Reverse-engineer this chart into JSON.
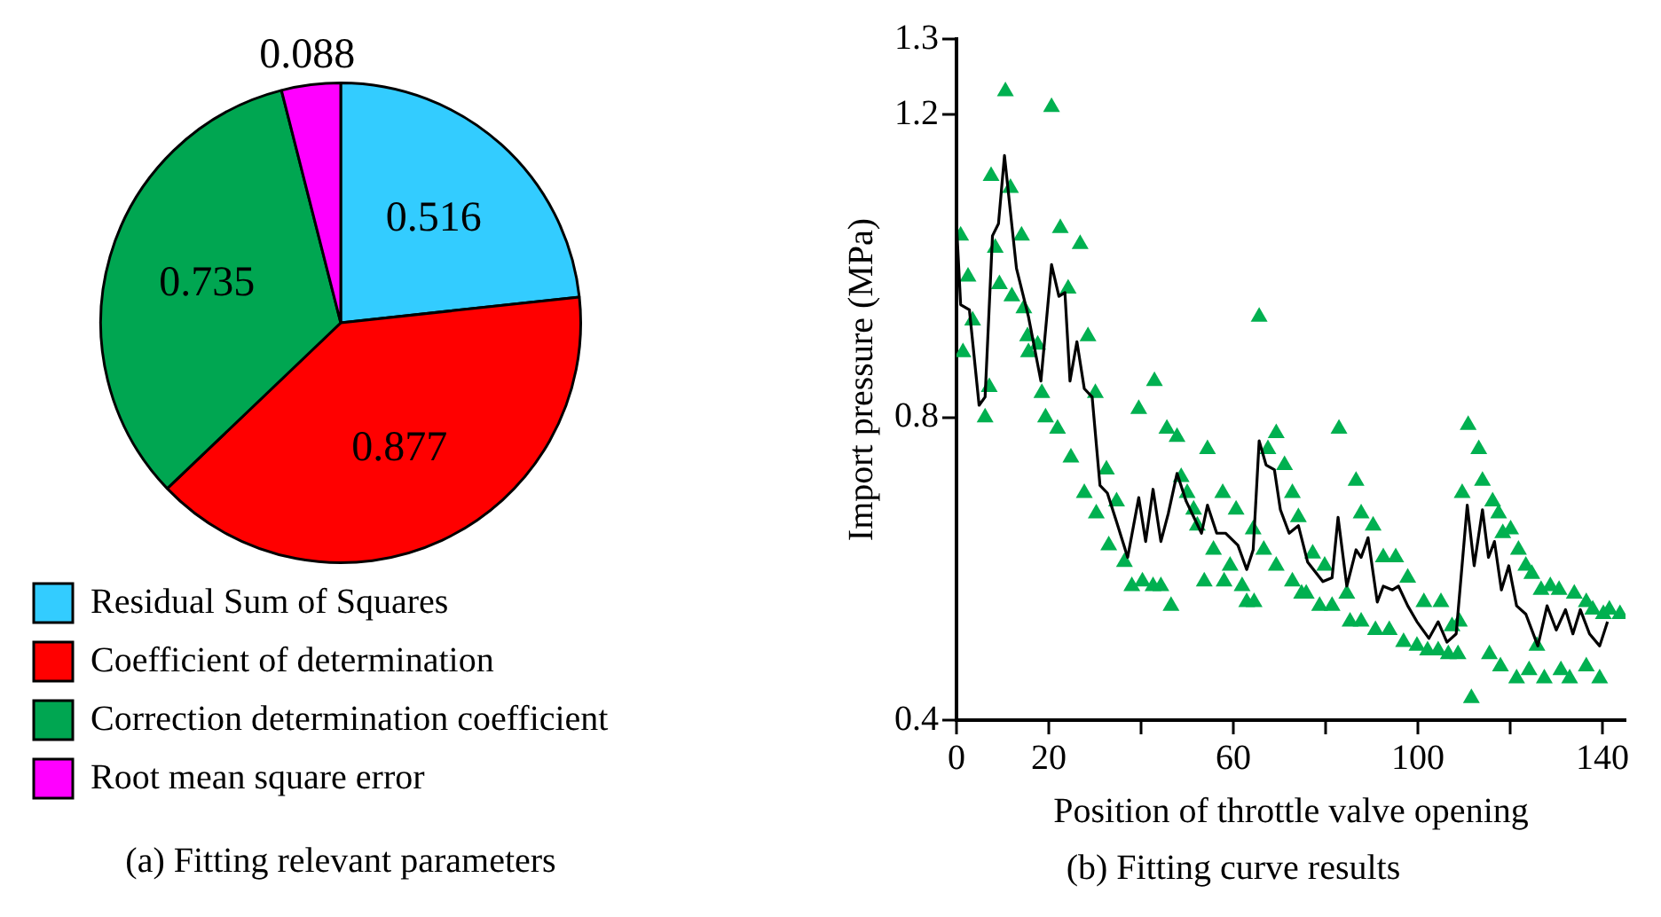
{
  "chart_data": [
    {
      "type": "pie",
      "title": "(a) Fitting relevant parameters",
      "categories": [
        "Residual Sum of Squares",
        "Coefficient of determination",
        "Correction determination coefficient",
        "Root mean square error"
      ],
      "values": [
        0.516,
        0.877,
        0.735,
        0.088
      ],
      "colors": [
        "#33ccff",
        "#ff0000",
        "#00a651",
        "#ff00ff"
      ],
      "data_labels": true,
      "legend": "bottom left"
    },
    {
      "type": "line",
      "title": "(b) Fitting curve results",
      "xlabel": "Position of throttle valve opening",
      "ylabel": "Import pressure (MPa)",
      "xlim": [
        0,
        145
      ],
      "ylim": [
        0.4,
        1.3
      ],
      "xticks": [
        0,
        20,
        {
          "value": 40,
          "label": null
        },
        60,
        {
          "value": 80,
          "label": null
        },
        100,
        {
          "value": 120,
          "label": null
        },
        140
      ],
      "yticks": [
        0.4,
        0.8,
        1.2,
        1.3
      ],
      "series": [
        {
          "type": "line",
          "color": "#000000",
          "marker": "none",
          "line_style": "solid",
          "x": [
            0,
            0.9,
            2.8,
            4.9,
            6.2,
            7.8,
            9.1,
            10.4,
            11.7,
            13,
            15.6,
            18.3,
            20.6,
            22.2,
            23.5,
            24.6,
            26.1,
            27.7,
            29.4,
            31.1,
            32.7,
            34.7,
            37.1,
            39.5,
            41,
            42.6,
            44.3,
            45.9,
            47.8,
            49.8,
            53.1,
            54.4,
            56.4,
            58.3,
            61,
            62.9,
            64.3,
            65.6,
            67.1,
            68.9,
            70.2,
            72.1,
            74.1,
            76.1,
            79.4,
            81.4,
            82.7,
            84.6,
            86.6,
            87.7,
            89.2,
            91.2,
            92.5,
            94.5,
            95.8,
            97.8,
            99.8,
            102.4,
            104.4,
            106.3,
            108.3,
            110.7,
            112.2,
            114,
            115.3,
            116.6,
            118.1,
            119.7,
            121.4,
            123.4,
            126,
            128,
            130,
            132,
            133.6,
            135.2,
            137.2,
            139.4,
            141.1
          ],
          "values": [
            1.056,
            0.949,
            0.942,
            0.816,
            0.827,
            1.04,
            1.056,
            1.146,
            1.071,
            0.997,
            0.933,
            0.848,
            1.002,
            0.96,
            0.965,
            0.848,
            0.9,
            0.838,
            0.827,
            0.71,
            0.7,
            0.662,
            0.615,
            0.694,
            0.636,
            0.705,
            0.636,
            0.673,
            0.726,
            0.689,
            0.647,
            0.684,
            0.647,
            0.647,
            0.631,
            0.599,
            0.625,
            0.769,
            0.737,
            0.731,
            0.678,
            0.647,
            0.657,
            0.609,
            0.583,
            0.588,
            0.668,
            0.577,
            0.625,
            0.615,
            0.641,
            0.556,
            0.577,
            0.572,
            0.577,
            0.551,
            0.53,
            0.508,
            0.53,
            0.503,
            0.514,
            0.684,
            0.604,
            0.678,
            0.615,
            0.636,
            0.572,
            0.604,
            0.551,
            0.54,
            0.498,
            0.551,
            0.519,
            0.546,
            0.514,
            0.546,
            0.514,
            0.498,
            0.53
          ]
        },
        {
          "type": "scatter",
          "color": "#00b050",
          "marker": "triangle",
          "x": [
            0.9,
            1.4,
            2.5,
            3.5,
            6.2,
            7.1,
            7.5,
            8.4,
            9.3,
            10.6,
            11.7,
            12,
            14.1,
            14.6,
            15.4,
            15.6,
            17.6,
            18.5,
            19.3,
            20.6,
            21.9,
            22.5,
            24.2,
            24.8,
            26.8,
            27.7,
            28.5,
            30.1,
            30.3,
            32.5,
            33,
            34.7,
            36.4,
            38,
            39.5,
            40.3,
            42.6,
            42.9,
            44.3,
            45.6,
            46.5,
            47.8,
            48.7,
            50,
            51.4,
            52.2,
            53.7,
            54.4,
            55.7,
            57.7,
            58,
            59.3,
            60.6,
            61.9,
            62.9,
            64.3,
            64.5,
            65.6,
            66.6,
            67.5,
            69.3,
            69.3,
            71.1,
            72.8,
            72.8,
            74.1,
            74.8,
            75.8,
            77.2,
            78.7,
            79.8,
            81.4,
            82.9,
            84.6,
            85.3,
            86.6,
            87.7,
            87.7,
            90.3,
            90.8,
            92.5,
            93.8,
            95.2,
            96.9,
            97.8,
            99.8,
            101.3,
            102.1,
            104.4,
            105,
            106.6,
            107.4,
            108.7,
            109,
            109.6,
            110.9,
            111.6,
            113.2,
            114,
            115.5,
            116.2,
            117.5,
            117.9,
            118.4,
            120.1,
            121.4,
            121.8,
            123.4,
            124.1,
            124.7,
            125.8,
            126.7,
            127.4,
            128.7,
            130.6,
            131,
            132.9,
            133.9,
            136.5,
            136.5,
            137.9,
            139.4,
            140.2,
            141.5,
            143.8
          ],
          "values": [
            1.04,
            0.886,
            0.986,
            0.928,
            0.8,
            0.84,
            1.119,
            1.024,
            0.976,
            1.231,
            1.103,
            0.96,
            1.04,
            0.944,
            0.907,
            0.886,
            0.896,
            0.832,
            0.8,
            1.21,
            0.785,
            1.05,
            0.97,
            0.747,
            1.029,
            0.7,
            0.907,
            0.832,
            0.673,
            0.731,
            0.631,
            0.689,
            0.609,
            0.577,
            0.811,
            0.583,
            0.577,
            0.848,
            0.577,
            0.785,
            0.551,
            0.774,
            0.721,
            0.7,
            0.678,
            0.657,
            0.583,
            0.758,
            0.625,
            0.7,
            0.583,
            0.604,
            0.678,
            0.577,
            0.556,
            0.652,
            0.556,
            0.933,
            0.625,
            0.758,
            0.779,
            0.604,
            0.737,
            0.7,
            0.583,
            0.668,
            0.567,
            0.567,
            0.62,
            0.551,
            0.604,
            0.551,
            0.785,
            0.567,
            0.53,
            0.716,
            0.53,
            0.673,
            0.657,
            0.519,
            0.615,
            0.519,
            0.615,
            0.503,
            0.588,
            0.498,
            0.556,
            0.492,
            0.492,
            0.556,
            0.487,
            0.524,
            0.487,
            0.53,
            0.7,
            0.79,
            0.429,
            0.758,
            0.716,
            0.487,
            0.689,
            0.673,
            0.471,
            0.647,
            0.652,
            0.455,
            0.625,
            0.604,
            0.466,
            0.593,
            0.498,
            0.572,
            0.455,
            0.577,
            0.572,
            0.466,
            0.455,
            0.567,
            0.556,
            0.471,
            0.546,
            0.455,
            0.54,
            0.546,
            0.54
          ]
        }
      ]
    }
  ]
}
